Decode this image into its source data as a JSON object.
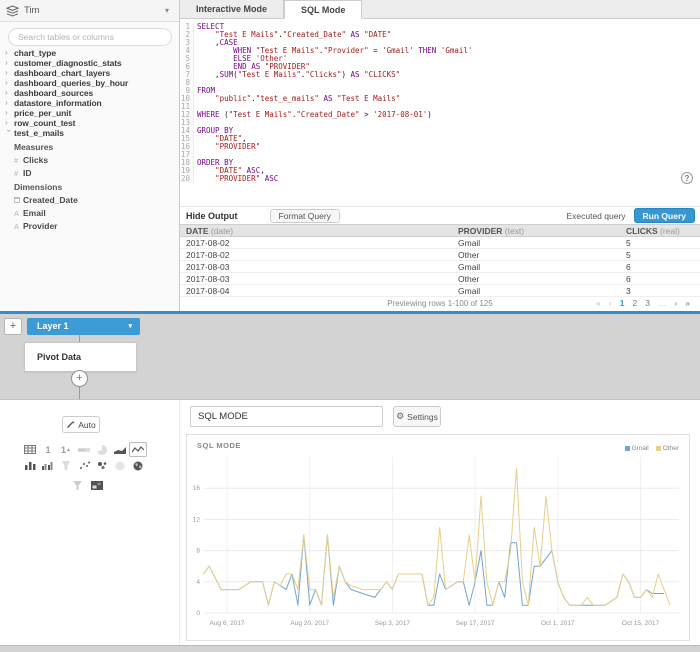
{
  "colors": {
    "accent_blue": "#3597d3",
    "layer_blue": "#3c9bd6",
    "divider_blue": "#2f8fcf",
    "sql_keyword": "#770788",
    "sql_string": "#a11c1c",
    "series_gmail": "#72a6cf",
    "series_other": "#e7cf8a"
  },
  "icons": {
    "caret_down": "▾",
    "chevron": "›",
    "hash": "#",
    "text_type": "A",
    "gear": "⚙",
    "help": "?",
    "plus": "+"
  },
  "sidebar": {
    "connection_name": "Tim",
    "search_placeholder": "Search tables or columns",
    "tree": {
      "collapsed_tables": [
        "chart_type",
        "customer_diagnostic_stats",
        "dashboard_chart_layers",
        "dashboard_queries_by_hour",
        "dashboard_sources",
        "datastore_information",
        "price_per_unit",
        "row_count_test"
      ],
      "expanded_table": "test_e_mails",
      "sections": [
        {
          "label": "Measures",
          "items": [
            {
              "icon": "hash",
              "name": "Clicks"
            },
            {
              "icon": "hash",
              "name": "ID"
            }
          ]
        },
        {
          "label": "Dimensions",
          "items": [
            {
              "icon": "calendar",
              "name": "Created_Date"
            },
            {
              "icon": "text_type",
              "name": "Email"
            },
            {
              "icon": "text_type",
              "name": "Provider"
            }
          ]
        }
      ]
    }
  },
  "tabs": {
    "interactive": "Interactive Mode",
    "sql": "SQL Mode"
  },
  "editor": {
    "lines": [
      [
        [
          "k",
          "SELECT"
        ]
      ],
      [
        [
          "p",
          "    "
        ],
        [
          "s",
          "\"Test E Mails\""
        ],
        [
          "p",
          "."
        ],
        [
          "s",
          "\"Created_Date\""
        ],
        [
          "p",
          " "
        ],
        [
          "k",
          "AS"
        ],
        [
          "p",
          " "
        ],
        [
          "s",
          "\"DATE\""
        ]
      ],
      [
        [
          "p",
          "    ,"
        ],
        [
          "k",
          "CASE"
        ]
      ],
      [
        [
          "p",
          "        "
        ],
        [
          "k",
          "WHEN"
        ],
        [
          "p",
          " "
        ],
        [
          "s",
          "\"Test E Mails\""
        ],
        [
          "p",
          "."
        ],
        [
          "s",
          "\"Provider\""
        ],
        [
          "p",
          " = "
        ],
        [
          "s",
          "'Gmail'"
        ],
        [
          "p",
          " "
        ],
        [
          "k",
          "THEN"
        ],
        [
          "p",
          " "
        ],
        [
          "s",
          "'Gmail'"
        ]
      ],
      [
        [
          "p",
          "        "
        ],
        [
          "k",
          "ELSE"
        ],
        [
          "p",
          " "
        ],
        [
          "s",
          "'Other'"
        ]
      ],
      [
        [
          "p",
          "        "
        ],
        [
          "k",
          "END"
        ],
        [
          "p",
          " "
        ],
        [
          "k",
          "AS"
        ],
        [
          "p",
          " "
        ],
        [
          "s",
          "\"PROVIDER\""
        ]
      ],
      [
        [
          "p",
          "    ,"
        ],
        [
          "k",
          "SUM"
        ],
        [
          "p",
          "("
        ],
        [
          "s",
          "\"Test E Mails\""
        ],
        [
          "p",
          "."
        ],
        [
          "s",
          "\"Clicks\""
        ],
        [
          "p",
          ") "
        ],
        [
          "k",
          "AS"
        ],
        [
          "p",
          " "
        ],
        [
          "s",
          "\"CLICKS\""
        ]
      ],
      [],
      [
        [
          "k",
          "FROM"
        ]
      ],
      [
        [
          "p",
          "    "
        ],
        [
          "s",
          "\"public\""
        ],
        [
          "p",
          "."
        ],
        [
          "s",
          "\"test_e_mails\""
        ],
        [
          "p",
          " "
        ],
        [
          "k",
          "AS"
        ],
        [
          "p",
          " "
        ],
        [
          "s",
          "\"Test E Mails\""
        ]
      ],
      [],
      [
        [
          "k",
          "WHERE"
        ],
        [
          "p",
          " ("
        ],
        [
          "s",
          "\"Test E Mails\""
        ],
        [
          "p",
          "."
        ],
        [
          "s",
          "\"Created_Date\""
        ],
        [
          "p",
          " > "
        ],
        [
          "s",
          "'2017-08-01'"
        ],
        [
          "p",
          ")"
        ]
      ],
      [],
      [
        [
          "k",
          "GROUP BY"
        ]
      ],
      [
        [
          "p",
          "    "
        ],
        [
          "s",
          "\"DATE\""
        ],
        [
          "p",
          ","
        ]
      ],
      [
        [
          "p",
          "    "
        ],
        [
          "s",
          "\"PROVIDER\""
        ]
      ],
      [],
      [
        [
          "k",
          "ORDER BY"
        ]
      ],
      [
        [
          "p",
          "    "
        ],
        [
          "s",
          "\"DATE\""
        ],
        [
          "p",
          " "
        ],
        [
          "k",
          "ASC"
        ],
        [
          "p",
          ","
        ]
      ],
      [
        [
          "p",
          "    "
        ],
        [
          "s",
          "\"PROVIDER\""
        ],
        [
          "p",
          " "
        ],
        [
          "k",
          "ASC"
        ]
      ]
    ]
  },
  "output": {
    "hide_output_label": "Hide Output",
    "format_query_label": "Format Query",
    "executed_label": "Executed query",
    "run_label": "Run Query",
    "columns": [
      {
        "name": "DATE",
        "type": "(date)"
      },
      {
        "name": "PROVIDER",
        "type": "(text)"
      },
      {
        "name": "CLICKS",
        "type": "(real)"
      }
    ],
    "rows": [
      [
        "2017-08-02",
        "Gmail",
        "5"
      ],
      [
        "2017-08-02",
        "Other",
        "5"
      ],
      [
        "2017-08-03",
        "Gmail",
        "6"
      ],
      [
        "2017-08-03",
        "Other",
        "6"
      ],
      [
        "2017-08-04",
        "Gmail",
        "3"
      ]
    ],
    "preview_text": "Previewing rows 1-100 of 125",
    "pager": [
      {
        "label": "«",
        "style": "dim"
      },
      {
        "label": "‹",
        "style": "dim"
      },
      {
        "label": "1",
        "style": "active"
      },
      {
        "label": "2",
        "style": ""
      },
      {
        "label": "3",
        "style": ""
      },
      {
        "label": "…",
        "style": "dim"
      },
      {
        "label": "›",
        "style": ""
      },
      {
        "label": "»",
        "style": ""
      }
    ]
  },
  "pipeline": {
    "add_layer": "+",
    "layer_label": "Layer 1",
    "step_label": "Pivot Data",
    "add_step": "+"
  },
  "builder": {
    "auto_label": "Auto",
    "title_value": "SQL MODE",
    "settings_label": "Settings",
    "chart_panel_title": "SQL MODE"
  },
  "chart_data": {
    "type": "line",
    "title": "SQL MODE",
    "xlabel": "",
    "ylabel": "",
    "x_unit": "days since 2017-08-02",
    "x_domain": [
      0,
      80
    ],
    "x_ticks": [
      {
        "d": 4,
        "label": "Aug 6, 2017"
      },
      {
        "d": 18,
        "label": "Aug 20, 2017"
      },
      {
        "d": 32,
        "label": "Sep 3, 2017"
      },
      {
        "d": 46,
        "label": "Sep 17, 2017"
      },
      {
        "d": 60,
        "label": "Oct 1, 2017"
      },
      {
        "d": 74,
        "label": "Oct 15, 2017"
      }
    ],
    "y_domain": [
      0,
      20
    ],
    "y_ticks": [
      0,
      4,
      8,
      12,
      16
    ],
    "grid": true,
    "legend_position": "top-right",
    "series": [
      {
        "name": "Gmail",
        "color": "#72a6cf",
        "points": [
          [
            0,
            5
          ],
          [
            1,
            6
          ],
          [
            3,
            3
          ],
          [
            6,
            3
          ],
          [
            8,
            4
          ],
          [
            10,
            4
          ],
          [
            11,
            1
          ],
          [
            12,
            4
          ],
          [
            13,
            3.5
          ],
          [
            14,
            3
          ],
          [
            15,
            5
          ],
          [
            16,
            1
          ],
          [
            17,
            10
          ],
          [
            18,
            1
          ],
          [
            19,
            3
          ],
          [
            20,
            1
          ],
          [
            21,
            10
          ],
          [
            22,
            1
          ],
          [
            23,
            6
          ],
          [
            24,
            4
          ],
          [
            25,
            3
          ],
          [
            27,
            2.5
          ],
          [
            29,
            2
          ],
          [
            31,
            4
          ],
          [
            32,
            3
          ],
          [
            33,
            5
          ],
          [
            35,
            5
          ],
          [
            37,
            5
          ],
          [
            38,
            1
          ],
          [
            39,
            1
          ],
          [
            40,
            5
          ],
          [
            41,
            3
          ],
          [
            42,
            3.5
          ],
          [
            43,
            4
          ],
          [
            44,
            4
          ],
          [
            45,
            1
          ],
          [
            46,
            4
          ],
          [
            47,
            8
          ],
          [
            48,
            1
          ],
          [
            49,
            1
          ],
          [
            50,
            4
          ],
          [
            51,
            2
          ],
          [
            52,
            9
          ],
          [
            53,
            9
          ],
          [
            54,
            1
          ],
          [
            55,
            1
          ],
          [
            56,
            6
          ],
          [
            57,
            6
          ],
          [
            58,
            7
          ],
          [
            59,
            8
          ],
          [
            60,
            4
          ],
          [
            61,
            2
          ],
          [
            62,
            1
          ],
          [
            64,
            1
          ],
          [
            66,
            1
          ],
          [
            68,
            1
          ],
          [
            70,
            2
          ],
          [
            71,
            5
          ],
          [
            72,
            4
          ],
          [
            73,
            2
          ],
          [
            74,
            2
          ],
          [
            75,
            3
          ],
          [
            76,
            2.5
          ],
          [
            78,
            2.5
          ]
        ]
      },
      {
        "name": "Other",
        "color": "#e7cf8a",
        "points": [
          [
            0,
            5
          ],
          [
            1,
            6
          ],
          [
            3,
            3
          ],
          [
            6,
            3
          ],
          [
            8,
            4
          ],
          [
            10,
            4
          ],
          [
            11,
            1
          ],
          [
            12,
            4
          ],
          [
            13,
            3.5
          ],
          [
            14,
            5
          ],
          [
            15,
            5
          ],
          [
            16,
            3
          ],
          [
            17,
            10
          ],
          [
            18,
            3
          ],
          [
            19,
            3
          ],
          [
            20,
            1
          ],
          [
            21,
            10
          ],
          [
            22,
            2
          ],
          [
            23,
            6
          ],
          [
            24,
            4
          ],
          [
            25,
            3.5
          ],
          [
            27,
            3
          ],
          [
            29,
            3
          ],
          [
            30,
            3
          ],
          [
            31,
            4
          ],
          [
            32,
            3
          ],
          [
            33,
            5
          ],
          [
            35,
            5
          ],
          [
            37,
            5
          ],
          [
            38,
            1
          ],
          [
            39,
            2
          ],
          [
            40,
            11
          ],
          [
            41,
            3
          ],
          [
            42,
            3.5
          ],
          [
            43,
            4
          ],
          [
            44,
            4
          ],
          [
            45,
            10
          ],
          [
            46,
            4
          ],
          [
            47,
            15
          ],
          [
            48,
            4
          ],
          [
            49,
            1
          ],
          [
            50,
            4
          ],
          [
            51,
            4
          ],
          [
            52,
            8
          ],
          [
            53,
            18.5
          ],
          [
            54,
            4
          ],
          [
            55,
            1
          ],
          [
            56,
            11
          ],
          [
            57,
            6
          ],
          [
            58,
            15
          ],
          [
            59,
            8
          ],
          [
            60,
            4
          ],
          [
            61,
            2
          ],
          [
            62,
            1
          ],
          [
            64,
            1
          ],
          [
            65,
            2
          ],
          [
            66,
            1
          ],
          [
            68,
            1
          ],
          [
            70,
            2
          ],
          [
            71,
            5
          ],
          [
            72,
            4
          ],
          [
            73,
            2
          ],
          [
            74,
            2
          ],
          [
            75,
            3
          ],
          [
            76,
            2
          ],
          [
            77,
            5
          ],
          [
            79,
            1
          ]
        ]
      }
    ]
  }
}
